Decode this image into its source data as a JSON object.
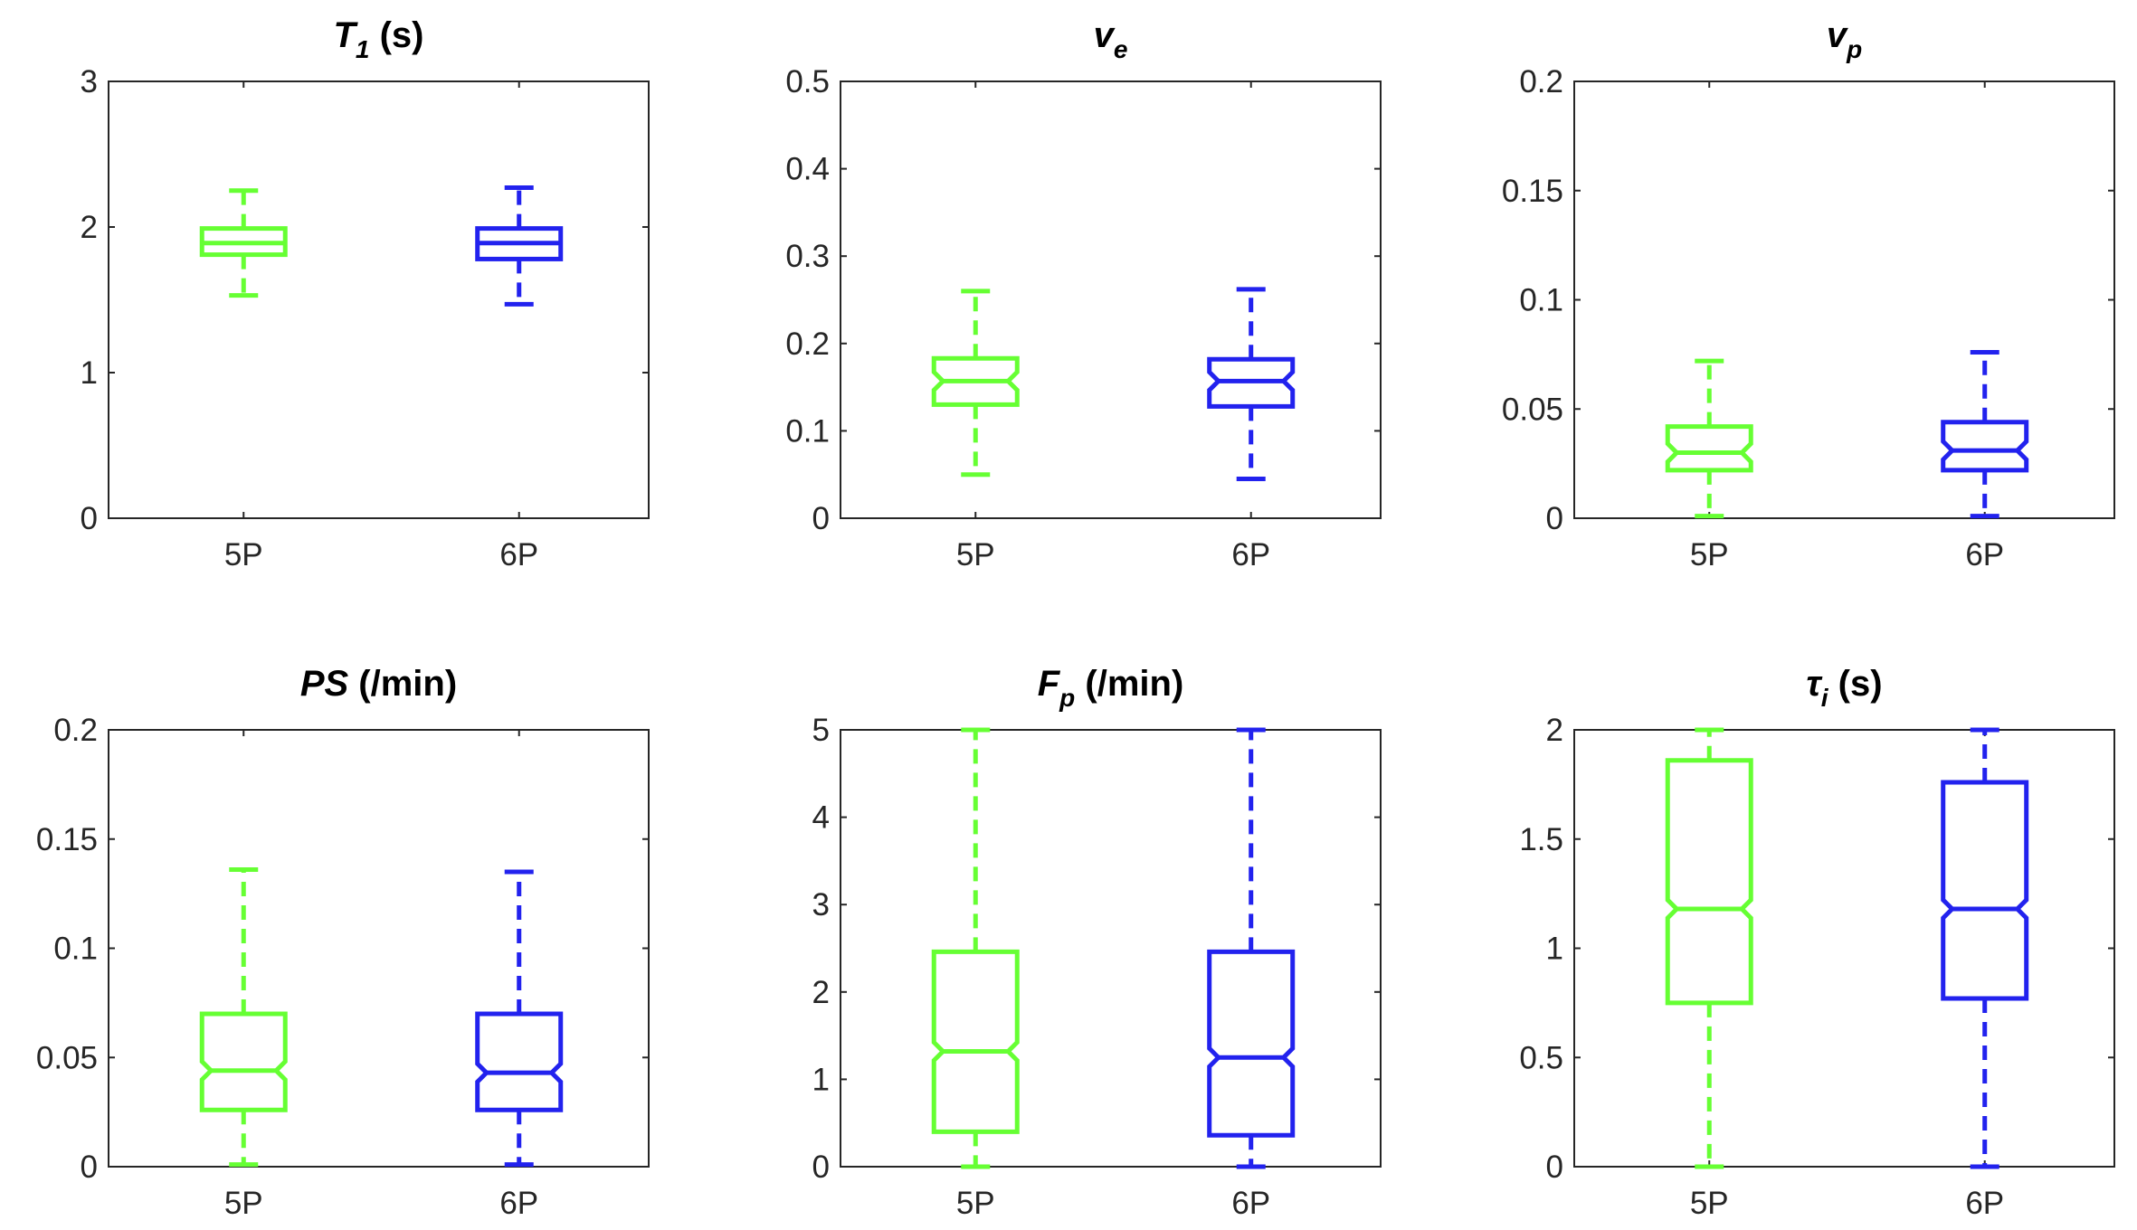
{
  "colors": {
    "5P": "#66ff33",
    "6P": "#2222ee",
    "axis": "#262626"
  },
  "chart_data": [
    {
      "type": "box",
      "title_main": "T",
      "title_sub": "1",
      "title_italic": true,
      "title_suffix": " (s)",
      "categories": [
        "5P",
        "6P"
      ],
      "ylim": [
        0,
        3
      ],
      "yticks": [
        0,
        1,
        2,
        3
      ],
      "ytick_labels": [
        "0",
        "1",
        "2",
        "3"
      ],
      "notched": false,
      "boxes": [
        {
          "name": "5P",
          "min": 1.53,
          "q1": 1.81,
          "median": 1.89,
          "q3": 1.99,
          "max": 2.25
        },
        {
          "name": "6P",
          "min": 1.47,
          "q1": 1.78,
          "median": 1.89,
          "q3": 1.99,
          "max": 2.27
        }
      ]
    },
    {
      "type": "box",
      "title_main": "v",
      "title_sub": "e",
      "title_italic": true,
      "title_suffix": "",
      "categories": [
        "5P",
        "6P"
      ],
      "ylim": [
        0,
        0.5
      ],
      "yticks": [
        0,
        0.1,
        0.2,
        0.3,
        0.4,
        0.5
      ],
      "ytick_labels": [
        "0",
        "0.1",
        "0.2",
        "0.3",
        "0.4",
        "0.5"
      ],
      "notched": true,
      "boxes": [
        {
          "name": "5P",
          "min": 0.05,
          "q1": 0.13,
          "median": 0.157,
          "q3": 0.183,
          "max": 0.26
        },
        {
          "name": "6P",
          "min": 0.045,
          "q1": 0.128,
          "median": 0.157,
          "q3": 0.182,
          "max": 0.262
        }
      ]
    },
    {
      "type": "box",
      "title_main": "v",
      "title_sub": "p",
      "title_italic": true,
      "title_suffix": "",
      "categories": [
        "5P",
        "6P"
      ],
      "ylim": [
        0,
        0.2
      ],
      "yticks": [
        0,
        0.05,
        0.1,
        0.15,
        0.2
      ],
      "ytick_labels": [
        "0",
        "0.05",
        "0.1",
        "0.15",
        "0.2"
      ],
      "notched": true,
      "boxes": [
        {
          "name": "5P",
          "min": 0.001,
          "q1": 0.022,
          "median": 0.03,
          "q3": 0.042,
          "max": 0.072
        },
        {
          "name": "6P",
          "min": 0.001,
          "q1": 0.022,
          "median": 0.031,
          "q3": 0.044,
          "max": 0.076
        }
      ]
    },
    {
      "type": "box",
      "title_main": "PS",
      "title_sub": "",
      "title_italic": true,
      "title_suffix": " (/min)",
      "categories": [
        "5P",
        "6P"
      ],
      "ylim": [
        0,
        0.2
      ],
      "yticks": [
        0,
        0.05,
        0.1,
        0.15,
        0.2
      ],
      "ytick_labels": [
        "0",
        "0.05",
        "0.1",
        "0.15",
        "0.2"
      ],
      "notched": true,
      "boxes": [
        {
          "name": "5P",
          "min": 0.001,
          "q1": 0.026,
          "median": 0.044,
          "q3": 0.07,
          "max": 0.136
        },
        {
          "name": "6P",
          "min": 0.001,
          "q1": 0.026,
          "median": 0.043,
          "q3": 0.07,
          "max": 0.135
        }
      ]
    },
    {
      "type": "box",
      "title_main": "F",
      "title_sub": "p",
      "title_italic": true,
      "title_suffix": " (/min)",
      "categories": [
        "5P",
        "6P"
      ],
      "ylim": [
        0,
        5
      ],
      "yticks": [
        0,
        1,
        2,
        3,
        4,
        5
      ],
      "ytick_labels": [
        "0",
        "1",
        "2",
        "3",
        "4",
        "5"
      ],
      "notched": true,
      "boxes": [
        {
          "name": "5P",
          "min": 0,
          "q1": 0.4,
          "median": 1.32,
          "q3": 2.46,
          "max": 5
        },
        {
          "name": "6P",
          "min": 0,
          "q1": 0.36,
          "median": 1.25,
          "q3": 2.46,
          "max": 5
        }
      ]
    },
    {
      "type": "box",
      "title_main": "τ",
      "title_sub": "i",
      "title_italic": true,
      "title_suffix": " (s)",
      "categories": [
        "5P",
        "6P"
      ],
      "ylim": [
        0,
        2
      ],
      "yticks": [
        0,
        0.5,
        1,
        1.5,
        2
      ],
      "ytick_labels": [
        "0",
        "0.5",
        "1",
        "1.5",
        "2"
      ],
      "notched": true,
      "boxes": [
        {
          "name": "5P",
          "min": 0,
          "q1": 0.75,
          "median": 1.18,
          "q3": 1.86,
          "max": 2
        },
        {
          "name": "6P",
          "min": 0,
          "q1": 0.77,
          "median": 1.18,
          "q3": 1.76,
          "max": 2
        }
      ]
    }
  ]
}
